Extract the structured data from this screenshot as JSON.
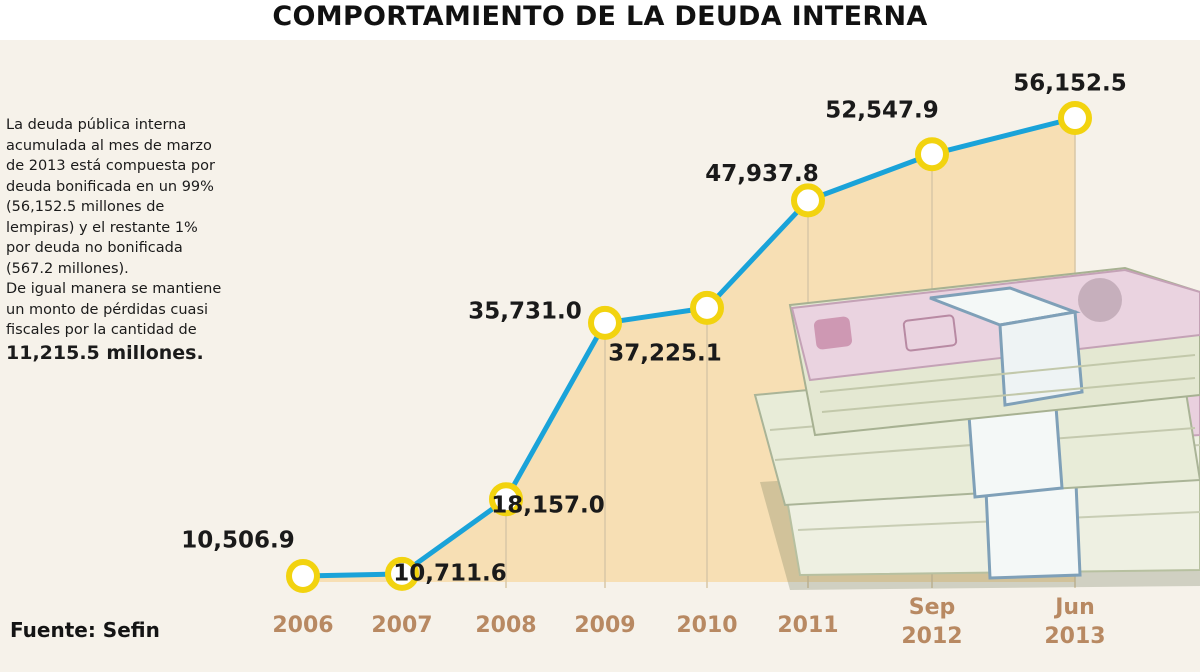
{
  "title": "COMPORTAMIENTO DE LA DEUDA INTERNA",
  "note": {
    "lines": [
      "La deuda pública interna",
      "acumulada al mes de marzo",
      "de 2013 está compuesta por",
      "deuda bonificada en un 99%",
      "(56,152.5 millones de",
      "lempiras)  y  el restante 1%",
      "por deuda no bonificada",
      "(567.2 millones).",
      "De igual manera se mantiene",
      "un monto de pérdidas cuasi",
      "fiscales por la cantidad de"
    ],
    "highlight": "11,215.5 millones."
  },
  "source": "Fuente: Sefin",
  "colors": {
    "line": "#1aa3d9",
    "marker_ring": "#f2d30f",
    "marker_fill": "#ffffff",
    "area_fill": "#f7dfb4",
    "background": "#f6f2ea",
    "tick_text": "#b88962"
  },
  "chart_data": {
    "type": "line",
    "title": "COMPORTAMIENTO DE LA DEUDA INTERNA",
    "xlabel": "",
    "ylabel": "",
    "categories": [
      [
        "2006"
      ],
      [
        "2007"
      ],
      [
        "2008"
      ],
      [
        "2009"
      ],
      [
        "2010"
      ],
      [
        "2011"
      ],
      [
        "Sep",
        "2012"
      ],
      [
        "Jun",
        "2013"
      ]
    ],
    "values": [
      10506.9,
      10711.6,
      18157.0,
      35731.0,
      37225.1,
      47937.8,
      52547.9,
      56152.5
    ],
    "data_labels": [
      "10,506.9",
      "10,711.6",
      "18,157.0",
      "35,731.0",
      "37,225.1",
      "47,937.8",
      "52,547.9",
      "56,152.5"
    ],
    "grid": false,
    "legend": "none",
    "image": "stacks-of-banknotes-illustration"
  }
}
